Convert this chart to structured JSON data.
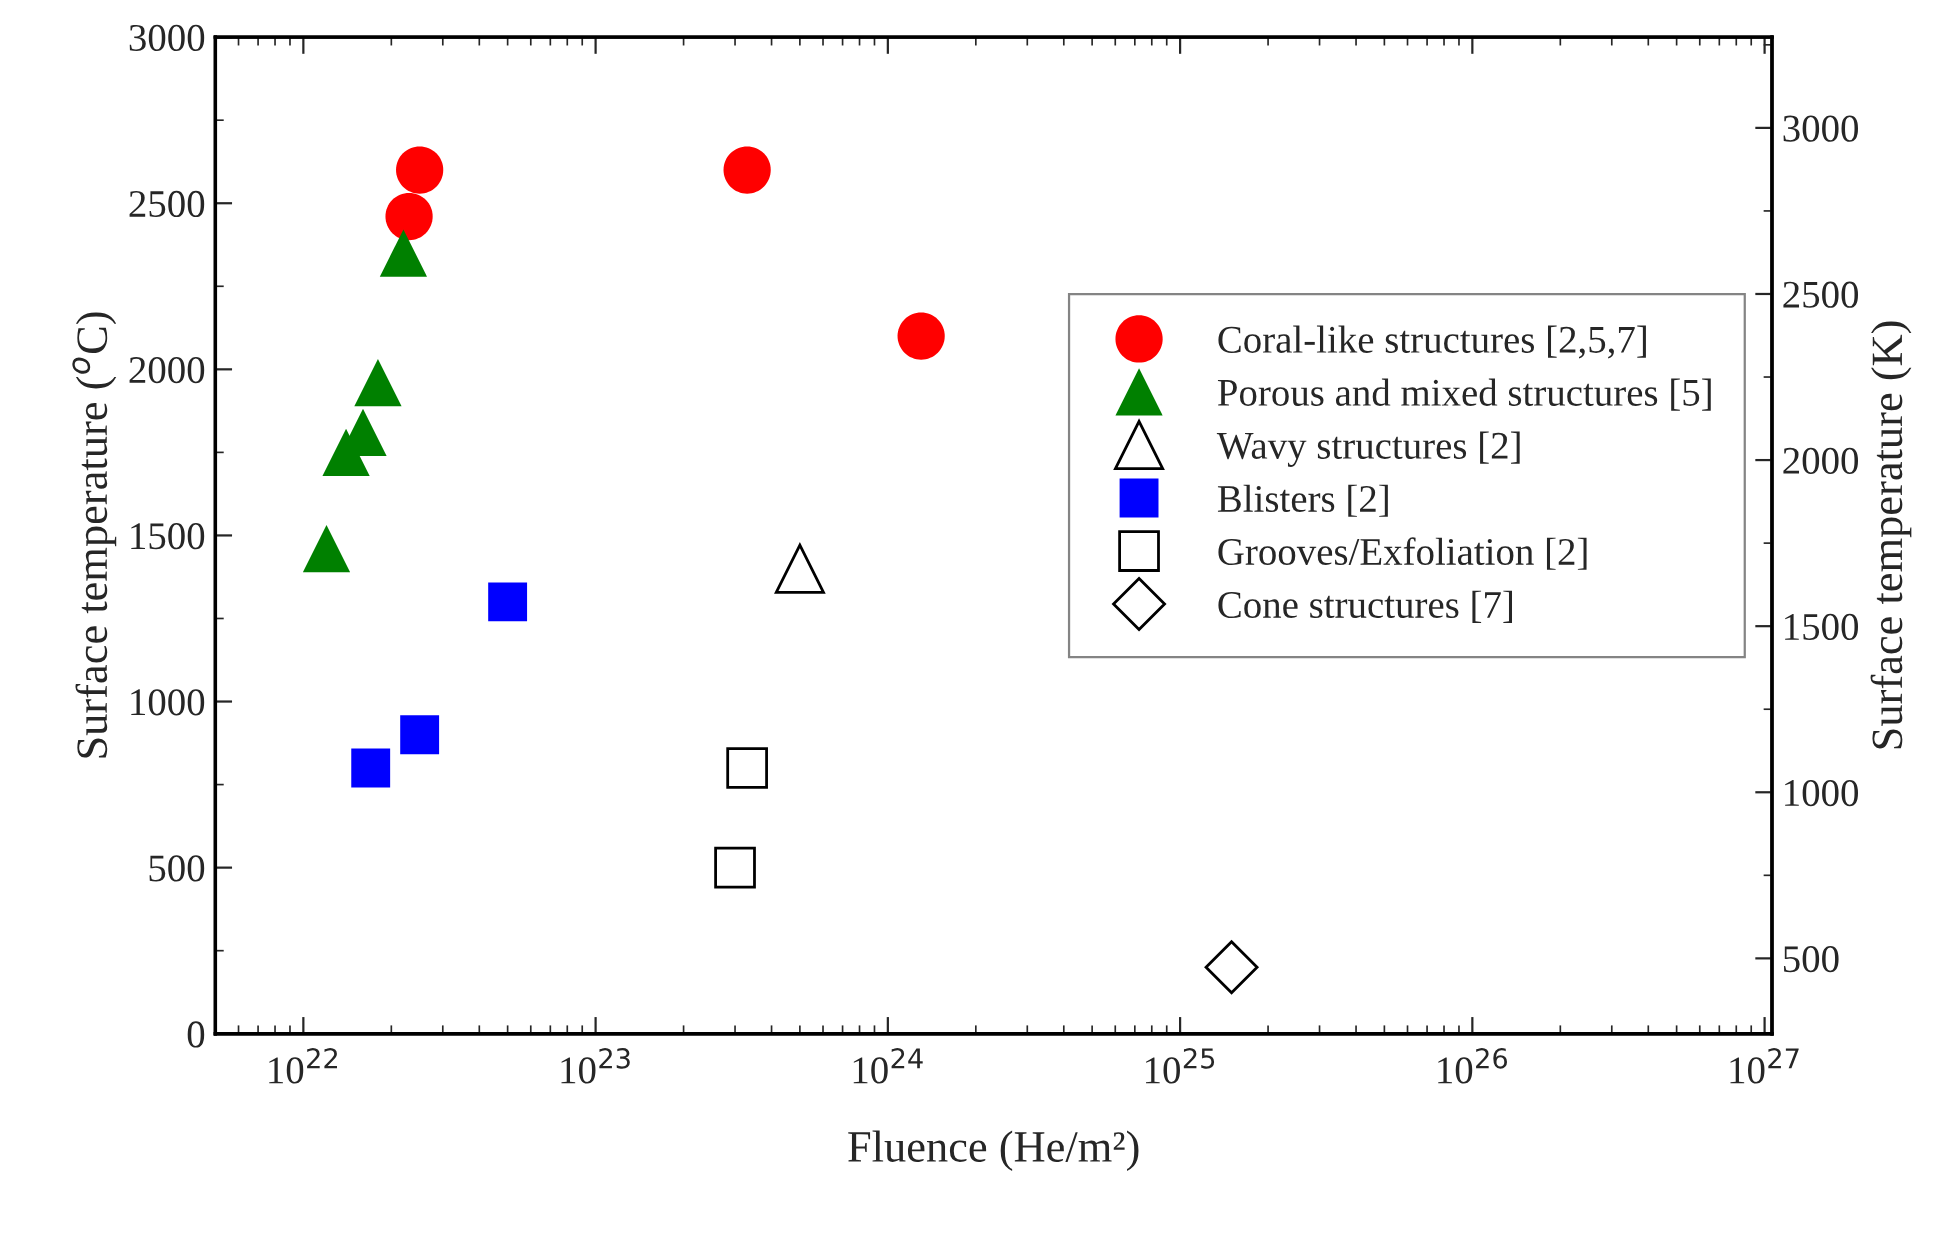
{
  "chart_data": {
    "type": "scatter",
    "xlabel": "Fluence (He/m²)",
    "ylabel": "Surface temperature ($^{o}$C)",
    "y2label": "Surface temperature (K)",
    "log": "x",
    "xlim": [
      5e+21,
      1.06e+27
    ],
    "xticks": [
      {
        "value": 1e+22,
        "label": "10$^{22}$"
      },
      {
        "value": 1e+23,
        "label": "10$^{23}$"
      },
      {
        "value": 1e+24,
        "label": "10$^{24}$"
      },
      {
        "value": 1e+25,
        "label": "10$^{25}$"
      },
      {
        "value": 1e+26,
        "label": "10$^{26}$"
      },
      {
        "value": 1e+27,
        "label": "10$^{27}$"
      }
    ],
    "ylim": [
      0,
      3000
    ],
    "yticks": [
      0,
      500,
      1000,
      1500,
      2000,
      2500,
      3000
    ],
    "y2lim": [
      273.15,
      3273.15
    ],
    "y2ticks": [
      500,
      1000,
      1500,
      2000,
      2500,
      3000
    ],
    "grid": false,
    "legend": "right",
    "series": [
      {
        "name": "Coral-like structures [2,5,7]",
        "color": "#ff0000",
        "marker": "circle",
        "x": [
          2.5e+22,
          2.3e+22,
          3.3e+23,
          1.3e+24
        ],
        "values": [
          2600,
          2460,
          2600,
          2100
        ]
      },
      {
        "name": "Porous and mixed structures [5]",
        "color": "#008000",
        "marker": "triangle",
        "x": [
          2.2e+22,
          1.8e+22,
          1.6e+22,
          1.4e+22,
          1.2e+22
        ],
        "values": [
          2350,
          1960,
          1810,
          1750,
          1460
        ]
      },
      {
        "name": "Wavy structures [2]",
        "color": "#000000",
        "marker": "triangle",
        "x": [
          5e+23
        ],
        "values": [
          1400
        ]
      },
      {
        "name": "Blisters [2]",
        "color": "#0000ff",
        "marker": "square",
        "x": [
          5e+22,
          2.5e+22,
          1.7e+22
        ],
        "values": [
          1300,
          900,
          800
        ]
      },
      {
        "name": "Grooves/Exfoliation [2]",
        "color": "#000000",
        "marker": "square",
        "x": [
          3.3e+23,
          3e+23
        ],
        "values": [
          800,
          500
        ]
      },
      {
        "name": "Cone structures [7]",
        "color": "#000000",
        "marker": "diamond",
        "x": [
          1.5e+25
        ],
        "values": [
          200
        ]
      }
    ]
  }
}
